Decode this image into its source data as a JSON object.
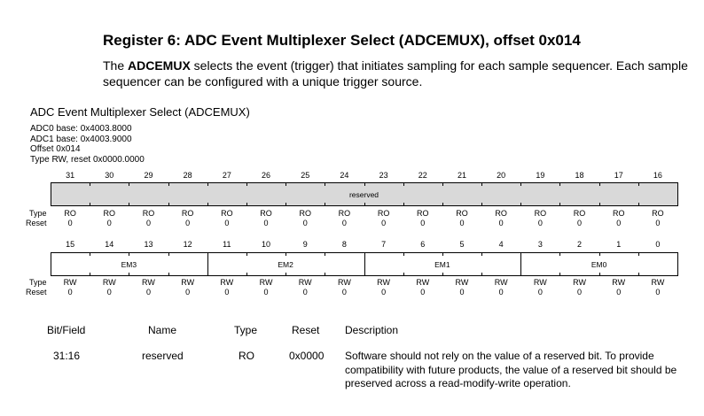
{
  "heading": {
    "title": "Register 6: ADC Event Multiplexer Select (ADCEMUX), offset 0x014",
    "intro_pre": "The ",
    "intro_bold": "ADCEMUX",
    "intro_post": " selects the event (trigger) that initiates sampling for each sample sequencer. Each sample sequencer can be configured with a unique trigger source."
  },
  "figure": {
    "title": "ADC Event Multiplexer Select (ADCEMUX)",
    "meta": [
      "ADC0 base: 0x4003.8000",
      "ADC1 base: 0x4003.9000",
      "Offset 0x014",
      "Type RW, reset 0x0000.0000"
    ]
  },
  "register": {
    "row_labels": {
      "type": "Type",
      "reset": "Reset"
    },
    "upper": {
      "bits": [
        "31",
        "30",
        "29",
        "28",
        "27",
        "26",
        "25",
        "24",
        "23",
        "22",
        "21",
        "20",
        "19",
        "18",
        "17",
        "16"
      ],
      "types": [
        "RO",
        "RO",
        "RO",
        "RO",
        "RO",
        "RO",
        "RO",
        "RO",
        "RO",
        "RO",
        "RO",
        "RO",
        "RO",
        "RO",
        "RO",
        "RO"
      ],
      "resets": [
        "0",
        "0",
        "0",
        "0",
        "0",
        "0",
        "0",
        "0",
        "0",
        "0",
        "0",
        "0",
        "0",
        "0",
        "0",
        "0"
      ],
      "fields": [
        {
          "name": "reserved",
          "width_bits": 16
        }
      ]
    },
    "lower": {
      "bits": [
        "15",
        "14",
        "13",
        "12",
        "11",
        "10",
        "9",
        "8",
        "7",
        "6",
        "5",
        "4",
        "3",
        "2",
        "1",
        "0"
      ],
      "types": [
        "RW",
        "RW",
        "RW",
        "RW",
        "RW",
        "RW",
        "RW",
        "RW",
        "RW",
        "RW",
        "RW",
        "RW",
        "RW",
        "RW",
        "RW",
        "RW"
      ],
      "resets": [
        "0",
        "0",
        "0",
        "0",
        "0",
        "0",
        "0",
        "0",
        "0",
        "0",
        "0",
        "0",
        "0",
        "0",
        "0",
        "0"
      ],
      "fields": [
        {
          "name": "EM3",
          "width_bits": 4
        },
        {
          "name": "EM2",
          "width_bits": 4
        },
        {
          "name": "EM1",
          "width_bits": 4
        },
        {
          "name": "EM0",
          "width_bits": 4
        }
      ]
    },
    "colors": {
      "reserved_fill": "#d9d9d9",
      "field_fill": "#ffffff",
      "border": "#000000"
    }
  },
  "table": {
    "headers": {
      "bitfield": "Bit/Field",
      "name": "Name",
      "type": "Type",
      "reset": "Reset",
      "description": "Description"
    },
    "rows": [
      {
        "bitfield": "31:16",
        "name": "reserved",
        "type": "RO",
        "reset": "0x0000",
        "description": "Software should not rely on the value of a reserved bit. To provide compatibility with future products, the value of a reserved bit should be preserved across a read-modify-write operation."
      }
    ]
  }
}
